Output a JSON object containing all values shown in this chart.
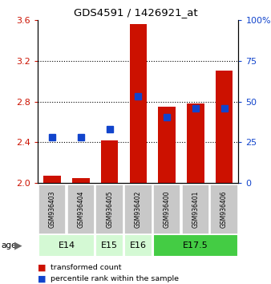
{
  "title": "GDS4591 / 1426921_at",
  "samples": [
    "GSM936403",
    "GSM936404",
    "GSM936405",
    "GSM936402",
    "GSM936400",
    "GSM936401",
    "GSM936406"
  ],
  "red_values": [
    2.07,
    2.05,
    2.42,
    3.56,
    2.75,
    2.78,
    3.1
  ],
  "blue_values": [
    2.45,
    2.45,
    2.53,
    2.85,
    2.65,
    2.73,
    2.73
  ],
  "ylim_left": [
    2.0,
    3.6
  ],
  "ylim_right": [
    0,
    100
  ],
  "yticks_left": [
    2.0,
    2.4,
    2.8,
    3.2,
    3.6
  ],
  "yticks_right": [
    0,
    25,
    50,
    75,
    100
  ],
  "ytick_labels_right": [
    "0",
    "25",
    "50",
    "75",
    "100%"
  ],
  "age_groups": [
    {
      "label": "E14",
      "start": 0,
      "end": 2,
      "color": "#d4f9d4"
    },
    {
      "label": "E15",
      "start": 2,
      "end": 3,
      "color": "#d4f9d4"
    },
    {
      "label": "E16",
      "start": 3,
      "end": 4,
      "color": "#d4f9d4"
    },
    {
      "label": "E17.5",
      "start": 4,
      "end": 7,
      "color": "#44cc44"
    }
  ],
  "red_color": "#cc1100",
  "blue_color": "#1144cc",
  "bar_baseline": 2.0,
  "bar_width": 0.6,
  "blue_marker_size": 6,
  "legend_red": "transformed count",
  "legend_blue": "percentile rank within the sample",
  "sample_box_color": "#c8c8c8",
  "figsize": [
    3.38,
    3.54
  ],
  "dpi": 100
}
